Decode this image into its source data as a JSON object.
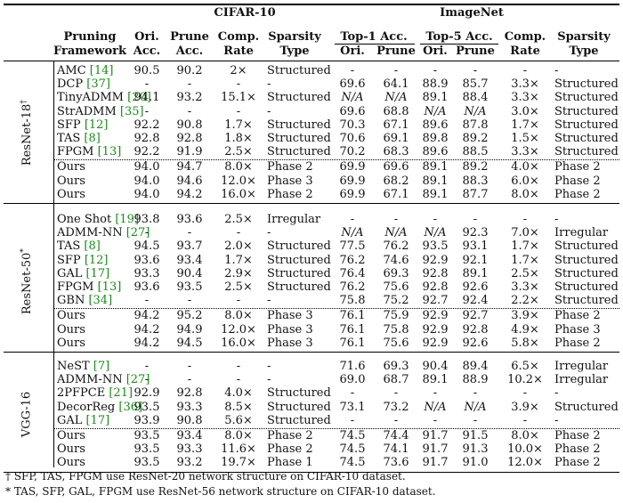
{
  "headers": {
    "cifar": "CIFAR-10",
    "imagenet": "ImageNet",
    "framework_l1": "Pruning",
    "framework_l2": "Framework",
    "ori_l1": "Ori.",
    "ori_l2": "Acc.",
    "prune_l1": "Prune",
    "prune_l2": "Acc.",
    "comp_l1": "Comp.",
    "comp_l2": "Rate",
    "sparsity_l1": "Sparsity",
    "sparsity_l2": "Type",
    "top1": "Top-1 Acc.",
    "top5": "Top-5 Acc.",
    "img_ori": "Ori.",
    "img_prune": "Prune",
    "img_ori5": "Ori.",
    "img_prune5": "Prune",
    "img_comp_l1": "Comp.",
    "img_comp_l2": "Rate",
    "img_sparsity_l1": "Sparsity",
    "img_sparsity_l2": "Type"
  },
  "groups": [
    {
      "network": "ResNet-18",
      "mark": "†",
      "rows": [
        [
          "AMC",
          "14",
          "90.5",
          "90.2",
          "2×",
          "Structured",
          "-",
          "-",
          "-",
          "-",
          "-",
          "-"
        ],
        [
          "DCP",
          "37",
          "-",
          "-",
          "-",
          "-",
          "69.6",
          "64.1",
          "88.9",
          "85.7",
          "3.3×",
          "Structured"
        ],
        [
          "TinyADMM",
          "20",
          "94.1",
          "93.2",
          "15.1×",
          "Structured",
          "N/A",
          "N/A",
          "89.1",
          "88.4",
          "3.3×",
          "Structured"
        ],
        [
          "StrADMM",
          "35",
          "-",
          "-",
          "-",
          "-",
          "69.6",
          "68.8",
          "N/A",
          "N/A",
          "3.0×",
          "Structured"
        ],
        [
          "SFP",
          "12",
          "92.2",
          "90.8",
          "1.7×",
          "Structured",
          "70.3",
          "67.1",
          "89.6",
          "87.8",
          "1.7×",
          "Structured"
        ],
        [
          "TAS",
          "8",
          "92.8",
          "92.8",
          "1.8×",
          "Structured",
          "70.6",
          "69.1",
          "89.8",
          "89.2",
          "1.5×",
          "Structured"
        ],
        [
          "FPGM",
          "13",
          "92.2",
          "91.9",
          "2.5×",
          "Structured",
          "70.2",
          "68.3",
          "89.6",
          "88.5",
          "3.3×",
          "Structured"
        ]
      ],
      "ours": [
        [
          "Ours",
          "94.0",
          "94.7",
          "8.0×",
          "Phase 2",
          "69.9",
          "69.6",
          "89.1",
          "89.2",
          "4.0×",
          "Phase 2"
        ],
        [
          "Ours",
          "94.0",
          "94.6",
          "12.0×",
          "Phase 3",
          "69.9",
          "68.2",
          "89.1",
          "88.3",
          "6.0×",
          "Phase 2"
        ],
        [
          "Ours",
          "94.0",
          "94.2",
          "16.0×",
          "Phase 2",
          "69.9",
          "67.1",
          "89.1",
          "87.7",
          "8.0×",
          "Phase 2"
        ]
      ]
    },
    {
      "network": "ResNet-50",
      "mark": "*",
      "rows": [
        [
          "One Shot",
          "19",
          "93.8",
          "93.6",
          "2.5×",
          "Irregular",
          "-",
          "-",
          "-",
          "-",
          "-",
          "-"
        ],
        [
          "ADMM-NN",
          "27",
          "-",
          "-",
          "-",
          "-",
          "N/A",
          "N/A",
          "N/A",
          "92.3",
          "7.0×",
          "Irregular"
        ],
        [
          "TAS",
          "8",
          "94.5",
          "93.7",
          "2.0×",
          "Structured",
          "77.5",
          "76.2",
          "93.5",
          "93.1",
          "1.7×",
          "Structured"
        ],
        [
          "SFP",
          "12",
          "93.6",
          "93.4",
          "1.7×",
          "Structured",
          "76.2",
          "74.6",
          "92.9",
          "92.1",
          "1.7×",
          "Structured"
        ],
        [
          "GAL",
          "17",
          "93.3",
          "90.4",
          "2.9×",
          "Structured",
          "76.4",
          "69.3",
          "92.8",
          "89.1",
          "2.5×",
          "Structured"
        ],
        [
          "FPGM",
          "13",
          "93.6",
          "93.5",
          "2.5×",
          "Structured",
          "76.2",
          "75.6",
          "92.8",
          "92.6",
          "3.3×",
          "Structured"
        ],
        [
          "GBN",
          "34",
          "-",
          "-",
          "-",
          "-",
          "75.8",
          "75.2",
          "92.7",
          "92.4",
          "2.2×",
          "Structured"
        ]
      ],
      "ours": [
        [
          "Ours",
          "94.2",
          "95.2",
          "8.0×",
          "Phase 3",
          "76.1",
          "75.9",
          "92.9",
          "92.7",
          "3.9×",
          "Phase 2"
        ],
        [
          "Ours",
          "94.2",
          "94.9",
          "12.0×",
          "Phase 3",
          "76.1",
          "75.8",
          "92.9",
          "92.8",
          "4.9×",
          "Phase 3"
        ],
        [
          "Ours",
          "94.2",
          "94.5",
          "16.0×",
          "Phase 3",
          "76.1",
          "75.6",
          "92.9",
          "92.6",
          "5.8×",
          "Phase 2"
        ]
      ]
    },
    {
      "network": "VGG-16",
      "mark": "",
      "rows": [
        [
          "NeST",
          "7",
          "-",
          "-",
          "-",
          "-",
          "71.6",
          "69.3",
          "90.4",
          "89.4",
          "6.5×",
          "Irregular"
        ],
        [
          "ADMM-NN",
          "27",
          "-",
          "-",
          "-",
          "-",
          "69.0",
          "68.7",
          "89.1",
          "88.9",
          "10.2×",
          "Irregular"
        ],
        [
          "2PFPCE",
          "21",
          "92.9",
          "92.8",
          "4.0×",
          "Structured",
          "-",
          "-",
          "-",
          "-",
          "-",
          "-"
        ],
        [
          "DecorReg",
          "36",
          "93.5",
          "93.3",
          "8.5×",
          "Structured",
          "73.1",
          "73.2",
          "N/A",
          "N/A",
          "3.9×",
          "Structured"
        ],
        [
          "GAL",
          "17",
          "93.9",
          "90.8",
          "5.6×",
          "Structured",
          "-",
          "-",
          "-",
          "-",
          "-",
          "-"
        ]
      ],
      "ours": [
        [
          "Ours",
          "93.5",
          "93.4",
          "8.0×",
          "Phase 2",
          "74.5",
          "74.4",
          "91.7",
          "91.5",
          "8.0×",
          "Phase 2"
        ],
        [
          "Ours",
          "93.5",
          "93.3",
          "11.6×",
          "Phase 2",
          "74.5",
          "74.1",
          "91.7",
          "91.3",
          "10.0×",
          "Phase 2"
        ],
        [
          "Ours",
          "93.5",
          "93.2",
          "19.7×",
          "Phase 1",
          "74.5",
          "73.6",
          "91.7",
          "91.0",
          "12.0×",
          "Phase 2"
        ]
      ]
    }
  ],
  "footnotes": [
    "† SFP, TAS, FPGM use ResNet-20 network structure on CIFAR-10 dataset.",
    "* TAS, SFP, GAL, FPGM use ResNet-56 network structure on CIFAR-10 dataset."
  ]
}
